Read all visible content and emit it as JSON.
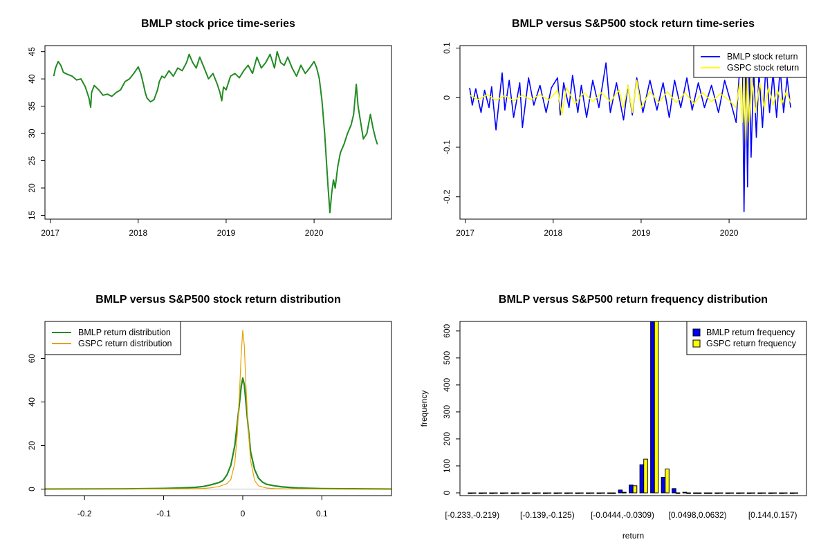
{
  "chart_data": [
    {
      "type": "line",
      "title": "BMLP stock price time-series",
      "xlabel": "",
      "ylabel": "",
      "xlim": [
        2016.94,
        2020.88
      ],
      "ylim": [
        14.3,
        46.1
      ],
      "x_ticks": [
        "2017",
        "2018",
        "2019",
        "2020"
      ],
      "y_ticks": [
        15,
        20,
        25,
        30,
        35,
        40,
        45
      ],
      "series": [
        {
          "color": "#228B22",
          "x": [
            2017.04,
            2017.06,
            2017.09,
            2017.12,
            2017.15,
            2017.2,
            2017.25,
            2017.3,
            2017.35,
            2017.4,
            2017.44,
            2017.46,
            2017.47,
            2017.5,
            2017.55,
            2017.6,
            2017.65,
            2017.7,
            2017.75,
            2017.8,
            2017.85,
            2017.9,
            2017.95,
            2018.0,
            2018.03,
            2018.06,
            2018.08,
            2018.1,
            2018.14,
            2018.18,
            2018.22,
            2018.24,
            2018.27,
            2018.3,
            2018.35,
            2018.4,
            2018.45,
            2018.5,
            2018.55,
            2018.58,
            2018.62,
            2018.66,
            2018.7,
            2018.75,
            2018.8,
            2018.85,
            2018.9,
            2018.93,
            2018.95,
            2018.97,
            2019.0,
            2019.05,
            2019.1,
            2019.15,
            2019.2,
            2019.25,
            2019.3,
            2019.35,
            2019.4,
            2019.45,
            2019.5,
            2019.55,
            2019.58,
            2019.62,
            2019.66,
            2019.7,
            2019.75,
            2019.8,
            2019.85,
            2019.9,
            2019.95,
            2020.0,
            2020.03,
            2020.06,
            2020.09,
            2020.12,
            2020.14,
            2020.16,
            2020.18,
            2020.2,
            2020.22,
            2020.24,
            2020.27,
            2020.3,
            2020.34,
            2020.38,
            2020.42,
            2020.45,
            2020.48,
            2020.5,
            2020.53,
            2020.56,
            2020.6,
            2020.64,
            2020.67,
            2020.7,
            2020.72
          ],
          "y": [
            40.5,
            42.0,
            43.2,
            42.5,
            41.2,
            40.8,
            40.5,
            39.8,
            40.0,
            38.5,
            36.5,
            34.8,
            37.5,
            38.8,
            38.0,
            37.0,
            37.2,
            36.8,
            37.5,
            38.0,
            39.5,
            40.0,
            41.0,
            42.2,
            41.0,
            39.0,
            37.5,
            36.5,
            35.8,
            36.2,
            38.0,
            39.5,
            40.5,
            40.2,
            41.5,
            40.5,
            42.0,
            41.5,
            43.0,
            44.5,
            43.0,
            42.0,
            44.0,
            42.0,
            40.0,
            41.0,
            39.0,
            37.5,
            36.0,
            38.5,
            38.0,
            40.5,
            41.0,
            40.2,
            41.5,
            42.5,
            41.0,
            44.0,
            42.0,
            43.0,
            44.5,
            42.0,
            45.0,
            43.0,
            42.5,
            44.0,
            42.0,
            40.5,
            42.5,
            41.0,
            42.0,
            43.2,
            42.0,
            40.0,
            36.0,
            30.0,
            25.0,
            20.0,
            15.5,
            19.0,
            21.5,
            20.0,
            24.0,
            26.5,
            28.0,
            30.0,
            31.5,
            33.5,
            39.0,
            35.0,
            32.0,
            29.0,
            30.0,
            33.5,
            31.0,
            29.0,
            28.0
          ]
        }
      ]
    },
    {
      "type": "line",
      "title": "BMLP versus S&P500 stock return time-series",
      "xlabel": "",
      "ylabel": "",
      "xlim": [
        2016.94,
        2020.88
      ],
      "ylim": [
        -0.245,
        0.105
      ],
      "x_ticks": [
        "2017",
        "2018",
        "2019",
        "2020"
      ],
      "y_ticks": [
        -0.2,
        -0.1,
        0.0,
        0.1
      ],
      "legend": "top-right",
      "series": [
        {
          "name": "BMLP stock return",
          "color": "#0000FF",
          "x": [
            2017.05,
            2017.08,
            2017.12,
            2017.18,
            2017.22,
            2017.27,
            2017.3,
            2017.35,
            2017.42,
            2017.45,
            2017.5,
            2017.55,
            2017.62,
            2017.65,
            2017.72,
            2017.78,
            2017.85,
            2017.92,
            2017.98,
            2018.05,
            2018.08,
            2018.12,
            2018.18,
            2018.22,
            2018.28,
            2018.32,
            2018.38,
            2018.45,
            2018.52,
            2018.6,
            2018.65,
            2018.72,
            2018.8,
            2018.85,
            2018.9,
            2018.95,
            2019.02,
            2019.1,
            2019.18,
            2019.25,
            2019.32,
            2019.38,
            2019.45,
            2019.52,
            2019.58,
            2019.65,
            2019.72,
            2019.8,
            2019.88,
            2019.95,
            2020.02,
            2020.08,
            2020.12,
            2020.15,
            2020.17,
            2020.19,
            2020.21,
            2020.23,
            2020.25,
            2020.28,
            2020.31,
            2020.34,
            2020.38,
            2020.42,
            2020.46,
            2020.5,
            2020.54,
            2020.58,
            2020.62,
            2020.66,
            2020.7
          ],
          "y": [
            0.02,
            -0.015,
            0.018,
            -0.03,
            0.015,
            -0.02,
            0.022,
            -0.065,
            0.05,
            -0.025,
            0.035,
            -0.04,
            0.03,
            -0.06,
            0.04,
            -0.015,
            0.025,
            -0.03,
            0.02,
            0.04,
            -0.035,
            0.03,
            -0.02,
            0.045,
            -0.03,
            0.025,
            -0.04,
            0.035,
            -0.02,
            0.07,
            -0.03,
            0.03,
            -0.045,
            0.025,
            -0.035,
            0.04,
            -0.03,
            0.035,
            -0.025,
            0.03,
            -0.04,
            0.035,
            -0.02,
            0.04,
            -0.025,
            0.03,
            -0.02,
            0.025,
            -0.03,
            0.035,
            -0.01,
            -0.05,
            0.06,
            0.1,
            -0.23,
            0.09,
            -0.18,
            0.08,
            -0.12,
            0.06,
            -0.08,
            0.05,
            -0.06,
            0.07,
            -0.03,
            0.05,
            -0.04,
            0.06,
            -0.03,
            0.04,
            -0.02
          ]
        },
        {
          "name": "GSPC stock return",
          "color": "#FFFF00",
          "x": [
            2017.05,
            2017.15,
            2017.25,
            2017.35,
            2017.45,
            2017.55,
            2017.65,
            2017.75,
            2017.85,
            2017.95,
            2018.05,
            2018.1,
            2018.15,
            2018.25,
            2018.35,
            2018.45,
            2018.55,
            2018.65,
            2018.75,
            2018.8,
            2018.85,
            2018.9,
            2018.95,
            2019.0,
            2019.1,
            2019.2,
            2019.3,
            2019.4,
            2019.5,
            2019.6,
            2019.7,
            2019.8,
            2019.9,
            2020.0,
            2020.08,
            2020.12,
            2020.15,
            2020.17,
            2020.19,
            2020.21,
            2020.23,
            2020.26,
            2020.3,
            2020.35,
            2020.4,
            2020.45,
            2020.5,
            2020.55,
            2020.6,
            2020.65,
            2020.7
          ],
          "y": [
            0.005,
            -0.004,
            0.006,
            -0.005,
            0.004,
            -0.006,
            0.005,
            -0.004,
            0.006,
            -0.005,
            0.015,
            -0.035,
            0.02,
            -0.012,
            0.01,
            -0.008,
            0.01,
            -0.008,
            0.015,
            -0.02,
            0.025,
            -0.03,
            0.035,
            -0.02,
            0.012,
            -0.01,
            0.012,
            -0.01,
            0.01,
            -0.012,
            0.01,
            -0.008,
            0.008,
            -0.005,
            -0.02,
            0.03,
            -0.05,
            0.07,
            -0.09,
            0.06,
            -0.05,
            0.04,
            -0.03,
            0.03,
            -0.02,
            0.02,
            -0.015,
            0.015,
            -0.012,
            0.012,
            -0.01
          ]
        }
      ]
    },
    {
      "type": "line",
      "title": "BMLP versus S&P500 stock return distribution",
      "xlabel": "",
      "ylabel": "",
      "xlim": [
        -0.25,
        0.188
      ],
      "ylim": [
        -3,
        77
      ],
      "x_ticks": [
        -0.2,
        -0.1,
        0.0,
        0.1
      ],
      "y_ticks": [
        0,
        20,
        40,
        60
      ],
      "legend": "top-left",
      "series": [
        {
          "name": "BMLP return distribution",
          "color": "#228B22",
          "x": [
            -0.25,
            -0.15,
            -0.1,
            -0.08,
            -0.06,
            -0.05,
            -0.04,
            -0.03,
            -0.025,
            -0.02,
            -0.015,
            -0.01,
            -0.007,
            -0.004,
            -0.002,
            0.0,
            0.002,
            0.004,
            0.007,
            0.01,
            0.015,
            0.02,
            0.025,
            0.03,
            0.04,
            0.05,
            0.07,
            0.1,
            0.188
          ],
          "y": [
            0,
            0.1,
            0.3,
            0.5,
            0.8,
            1.2,
            2.0,
            3.0,
            4.0,
            6.5,
            11,
            20,
            30,
            40,
            47,
            51,
            48,
            40,
            28,
            17,
            9,
            5,
            3.2,
            2.2,
            1.5,
            1.0,
            0.5,
            0.2,
            0
          ]
        },
        {
          "name": "GSPC return distribution",
          "color": "#E6A000",
          "x": [
            -0.25,
            -0.13,
            -0.08,
            -0.05,
            -0.04,
            -0.03,
            -0.02,
            -0.015,
            -0.01,
            -0.007,
            -0.004,
            -0.002,
            0.0,
            0.002,
            0.004,
            0.007,
            0.01,
            0.015,
            0.02,
            0.03,
            0.04,
            0.06,
            0.1,
            0.188
          ],
          "y": [
            0,
            0.05,
            0.1,
            0.3,
            0.6,
            1.2,
            2.5,
            4.5,
            12,
            25,
            45,
            62,
            73,
            66,
            48,
            27,
            13,
            4,
            1.5,
            0.5,
            0.2,
            0.1,
            0,
            0
          ]
        }
      ]
    },
    {
      "type": "bar",
      "title": "BMLP versus S&P500 return frequency distribution",
      "xlabel": "return",
      "ylabel": "frequency",
      "ylim": [
        0,
        620
      ],
      "y_ticks": [
        0,
        100,
        200,
        300,
        400,
        500,
        600
      ],
      "x_tick_labels": [
        "[-0.233,-0.219)",
        "[-0.139,-0.125)",
        "[-0.0444,-0.0309)",
        "[0.0498,0.0632)",
        "[0.144,0.157)"
      ],
      "legend": "top-right",
      "series": [
        {
          "name": "BMLP return frequency",
          "color": "#0000FF",
          "values": [
            3,
            2,
            1,
            1,
            1,
            1,
            1,
            2,
            2,
            2,
            2,
            2,
            3,
            5,
            20,
            38,
            110,
            620,
            65,
            25,
            12,
            7,
            5,
            4,
            3,
            2,
            1,
            1,
            1,
            1,
            1
          ]
        },
        {
          "name": "GSPC return frequency",
          "color": "#FFFF00",
          "values": [
            0,
            0,
            0,
            0,
            0,
            0,
            0,
            0,
            0,
            0,
            0,
            0,
            0,
            2,
            12,
            35,
            130,
            620,
            95,
            10,
            3,
            1,
            1,
            0,
            0,
            0,
            0,
            0,
            0,
            0,
            0
          ]
        }
      ]
    }
  ]
}
